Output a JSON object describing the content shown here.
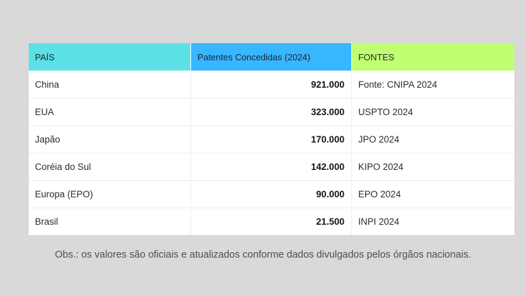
{
  "page": {
    "background_color": "#d9d9d9"
  },
  "table": {
    "headers": [
      {
        "label": "PAÍS",
        "color": "#5ce1e6"
      },
      {
        "label": "Patentes Concedidas (2024)",
        "color": "#38b6ff"
      },
      {
        "label": "FONTES",
        "color": "#c1ff72"
      }
    ],
    "rows": [
      {
        "country": "China",
        "patents": "921.000",
        "source": "Fonte: CNIPA 2024"
      },
      {
        "country": "EUA",
        "patents": "323.000",
        "source": "USPTO 2024"
      },
      {
        "country": "Japão",
        "patents": "170.000",
        "source": "JPO 2024"
      },
      {
        "country": "Coréia do Sul",
        "patents": "142.000",
        "source": "KIPO 2024"
      },
      {
        "country": "Europa (EPO)",
        "patents": "90.000",
        "source": "EPO 2024"
      },
      {
        "country": "Brasil",
        "patents": "21.500",
        "source": "INPI 2024"
      }
    ]
  },
  "note": "Obs.: os valores são oficiais e atualizados conforme dados divulgados pelos órgãos nacionais."
}
